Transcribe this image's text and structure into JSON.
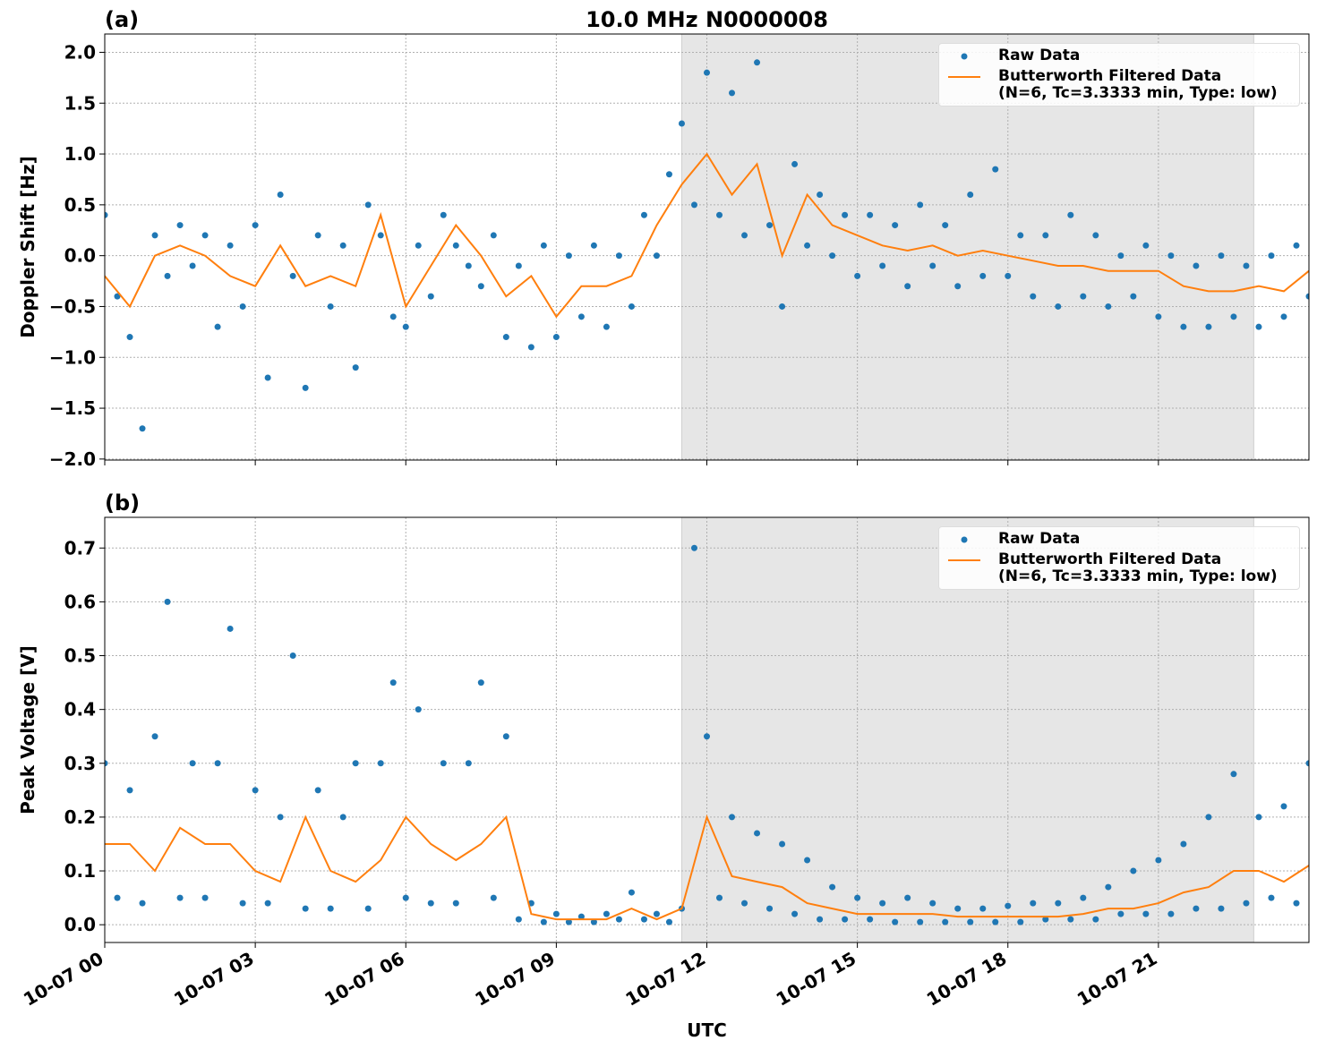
{
  "chart_data": [
    {
      "type": "line",
      "panel_label": "(a)",
      "title": "10.0 MHz N0000008",
      "ylabel": "Doppler Shift [Hz]",
      "xlim": [
        0,
        24
      ],
      "ylim": [
        -2.01,
        2.18
      ],
      "xticks": [
        {
          "value": 0,
          "label": "10-07 00"
        },
        {
          "value": 3,
          "label": "10-07 03"
        },
        {
          "value": 6,
          "label": "10-07 06"
        },
        {
          "value": 9,
          "label": "10-07 09"
        },
        {
          "value": 12,
          "label": "10-07 12"
        },
        {
          "value": 15,
          "label": "10-07 15"
        },
        {
          "value": 18,
          "label": "10-07 18"
        },
        {
          "value": 21,
          "label": "10-07 21"
        }
      ],
      "show_xtick_labels": false,
      "yticks": [
        {
          "value": -2,
          "label": "−2.0"
        },
        {
          "value": -1.5,
          "label": "−1.5"
        },
        {
          "value": -1,
          "label": "−1.0"
        },
        {
          "value": -0.5,
          "label": "−0.5"
        },
        {
          "value": 0,
          "label": "0.0"
        },
        0.5,
        {
          "value": 1,
          "label": "1.0"
        },
        1.5,
        {
          "value": 2,
          "label": "2.0"
        }
      ],
      "grid": true,
      "shaded_span": [
        11.5,
        22.9
      ],
      "legend": "upper right",
      "series": [
        {
          "name": "Raw Data",
          "kind": "scatter",
          "color": "#1f77b4",
          "x": [
            0,
            0.25,
            0.5,
            0.75,
            1,
            1.25,
            1.5,
            1.75,
            2,
            2.25,
            2.5,
            2.75,
            3,
            3.25,
            3.5,
            3.75,
            4,
            4.25,
            4.5,
            4.75,
            5,
            5.25,
            5.5,
            5.75,
            6,
            6.25,
            6.5,
            6.75,
            7,
            7.25,
            7.5,
            7.75,
            8,
            8.25,
            8.5,
            8.75,
            9,
            9.25,
            9.5,
            9.75,
            10,
            10.25,
            10.5,
            10.75,
            11,
            11.25,
            11.5,
            11.75,
            12,
            12.25,
            12.5,
            12.75,
            13,
            13.25,
            13.5,
            13.75,
            14,
            14.25,
            14.5,
            14.75,
            15,
            15.25,
            15.5,
            15.75,
            16,
            16.25,
            16.5,
            16.75,
            17,
            17.25,
            17.5,
            17.75,
            18,
            18.25,
            18.5,
            18.75,
            19,
            19.25,
            19.5,
            19.75,
            20,
            20.25,
            20.5,
            20.75,
            21,
            21.25,
            21.5,
            21.75,
            22,
            22.25,
            22.5,
            22.75,
            23,
            23.25,
            23.5,
            23.75,
            24
          ],
          "values": [
            0.4,
            -0.4,
            -0.8,
            -1.7,
            0.2,
            -0.2,
            0.3,
            -0.1,
            0.2,
            -0.7,
            0.1,
            -0.5,
            0.3,
            -1.2,
            0.6,
            -0.2,
            -1.3,
            0.2,
            -0.5,
            0.1,
            -1.1,
            0.5,
            0.2,
            -0.6,
            -0.7,
            0.1,
            -0.4,
            0.4,
            0.1,
            -0.1,
            -0.3,
            0.2,
            -0.8,
            -0.1,
            -0.9,
            0.1,
            -0.8,
            0,
            -0.6,
            0.1,
            -0.7,
            0,
            -0.5,
            0.4,
            0,
            0.8,
            1.3,
            0.5,
            1.8,
            0.4,
            1.6,
            0.2,
            1.9,
            0.3,
            -0.5,
            0.9,
            0.1,
            0.6,
            0,
            0.4,
            -0.2,
            0.4,
            -0.1,
            0.3,
            -0.3,
            0.5,
            -0.1,
            0.3,
            -0.3,
            0.6,
            -0.2,
            0.85,
            -0.2,
            0.2,
            -0.4,
            0.2,
            -0.5,
            0.4,
            -0.4,
            0.2,
            -0.5,
            0,
            -0.4,
            0.1,
            -0.6,
            0,
            -0.7,
            -0.1,
            -0.7,
            0,
            -0.6,
            -0.1,
            -0.7,
            0,
            -0.6,
            0.1,
            -0.4
          ]
        },
        {
          "name": "Butterworth Filtered Data\n(N=6, Tc=3.3333 min, Type: low)",
          "kind": "line",
          "color": "#ff7f0e",
          "x": [
            0,
            0.5,
            1,
            1.5,
            2,
            2.5,
            3,
            3.5,
            4,
            4.5,
            5,
            5.5,
            6,
            6.5,
            7,
            7.5,
            8,
            8.5,
            9,
            9.5,
            10,
            10.5,
            11,
            11.5,
            12,
            12.5,
            13,
            13.5,
            14,
            14.5,
            15,
            15.5,
            16,
            16.5,
            17,
            17.5,
            18,
            18.5,
            19,
            19.5,
            20,
            20.5,
            21,
            21.5,
            22,
            22.5,
            23,
            23.5,
            24
          ],
          "values": [
            -0.2,
            -0.5,
            0,
            0.1,
            0,
            -0.2,
            -0.3,
            0.1,
            -0.3,
            -0.2,
            -0.3,
            0.4,
            -0.5,
            -0.1,
            0.3,
            0,
            -0.4,
            -0.2,
            -0.6,
            -0.3,
            -0.3,
            -0.2,
            0.3,
            0.7,
            1,
            0.6,
            0.9,
            0,
            0.6,
            0.3,
            0.2,
            0.1,
            0.05,
            0.1,
            0,
            0.05,
            0,
            -0.05,
            -0.1,
            -0.1,
            -0.15,
            -0.15,
            -0.15,
            -0.3,
            -0.35,
            -0.35,
            -0.3,
            -0.35,
            -0.15
          ]
        }
      ]
    },
    {
      "type": "line",
      "panel_label": "(b)",
      "ylabel": "Peak Voltage [V]",
      "xlabel": "UTC",
      "xlim": [
        0,
        24
      ],
      "ylim": [
        -0.033,
        0.757
      ],
      "xticks": [
        {
          "value": 0,
          "label": "10-07 00"
        },
        {
          "value": 3,
          "label": "10-07 03"
        },
        {
          "value": 6,
          "label": "10-07 06"
        },
        {
          "value": 9,
          "label": "10-07 09"
        },
        {
          "value": 12,
          "label": "10-07 12"
        },
        {
          "value": 15,
          "label": "10-07 15"
        },
        {
          "value": 18,
          "label": "10-07 18"
        },
        {
          "value": 21,
          "label": "10-07 21"
        }
      ],
      "show_xtick_labels": true,
      "yticks": [
        {
          "value": 0,
          "label": "0.0"
        },
        0.1,
        0.2,
        0.3,
        0.4,
        0.5,
        0.6,
        0.7
      ],
      "grid": true,
      "shaded_span": [
        11.5,
        22.9
      ],
      "legend": "upper right",
      "series": [
        {
          "name": "Raw Data",
          "kind": "scatter",
          "color": "#1f77b4",
          "x": [
            0,
            0.25,
            0.5,
            0.75,
            1,
            1.25,
            1.5,
            1.75,
            2,
            2.25,
            2.5,
            2.75,
            3,
            3.25,
            3.5,
            3.75,
            4,
            4.25,
            4.5,
            4.75,
            5,
            5.25,
            5.5,
            5.75,
            6,
            6.25,
            6.5,
            6.75,
            7,
            7.25,
            7.5,
            7.75,
            8,
            8.25,
            8.5,
            8.75,
            9,
            9.25,
            9.5,
            9.75,
            10,
            10.25,
            10.5,
            10.75,
            11,
            11.25,
            11.5,
            11.75,
            12,
            12.25,
            12.5,
            12.75,
            13,
            13.25,
            13.5,
            13.75,
            14,
            14.25,
            14.5,
            14.75,
            15,
            15.25,
            15.5,
            15.75,
            16,
            16.25,
            16.5,
            16.75,
            17,
            17.25,
            17.5,
            17.75,
            18,
            18.25,
            18.5,
            18.75,
            19,
            19.25,
            19.5,
            19.75,
            20,
            20.25,
            20.5,
            20.75,
            21,
            21.25,
            21.5,
            21.75,
            22,
            22.25,
            22.5,
            22.75,
            23,
            23.25,
            23.5,
            23.75,
            24
          ],
          "values": [
            0.3,
            0.05,
            0.25,
            0.04,
            0.35,
            0.6,
            0.05,
            0.3,
            0.05,
            0.3,
            0.55,
            0.04,
            0.25,
            0.04,
            0.2,
            0.5,
            0.03,
            0.25,
            0.03,
            0.2,
            0.3,
            0.03,
            0.3,
            0.45,
            0.05,
            0.4,
            0.04,
            0.3,
            0.04,
            0.3,
            0.45,
            0.05,
            0.35,
            0.01,
            0.04,
            0.005,
            0.02,
            0.005,
            0.015,
            0.005,
            0.02,
            0.01,
            0.06,
            0.01,
            0.02,
            0.005,
            0.03,
            0.7,
            0.35,
            0.05,
            0.2,
            0.04,
            0.17,
            0.03,
            0.15,
            0.02,
            0.12,
            0.01,
            0.07,
            0.01,
            0.05,
            0.01,
            0.04,
            0.005,
            0.05,
            0.005,
            0.04,
            0.005,
            0.03,
            0.005,
            0.03,
            0.005,
            0.035,
            0.005,
            0.04,
            0.01,
            0.04,
            0.01,
            0.05,
            0.01,
            0.07,
            0.02,
            0.1,
            0.02,
            0.12,
            0.02,
            0.15,
            0.03,
            0.2,
            0.03,
            0.28,
            0.04,
            0.2,
            0.05,
            0.22,
            0.04,
            0.3
          ]
        },
        {
          "name": "Butterworth Filtered Data\n(N=6, Tc=3.3333 min, Type: low)",
          "kind": "line",
          "color": "#ff7f0e",
          "x": [
            0,
            0.5,
            1,
            1.5,
            2,
            2.5,
            3,
            3.5,
            4,
            4.5,
            5,
            5.5,
            6,
            6.5,
            7,
            7.5,
            8,
            8.5,
            9,
            9.5,
            10,
            10.5,
            11,
            11.5,
            12,
            12.5,
            13,
            13.5,
            14,
            14.5,
            15,
            15.5,
            16,
            16.5,
            17,
            17.5,
            18,
            18.5,
            19,
            19.5,
            20,
            20.5,
            21,
            21.5,
            22,
            22.5,
            23,
            23.5,
            24
          ],
          "values": [
            0.15,
            0.15,
            0.1,
            0.18,
            0.15,
            0.15,
            0.1,
            0.08,
            0.2,
            0.1,
            0.08,
            0.12,
            0.2,
            0.15,
            0.12,
            0.15,
            0.2,
            0.02,
            0.01,
            0.01,
            0.01,
            0.03,
            0.01,
            0.03,
            0.2,
            0.09,
            0.08,
            0.07,
            0.04,
            0.03,
            0.02,
            0.02,
            0.02,
            0.02,
            0.015,
            0.015,
            0.015,
            0.015,
            0.015,
            0.02,
            0.03,
            0.03,
            0.04,
            0.06,
            0.07,
            0.1,
            0.1,
            0.08,
            0.11
          ]
        }
      ]
    }
  ]
}
